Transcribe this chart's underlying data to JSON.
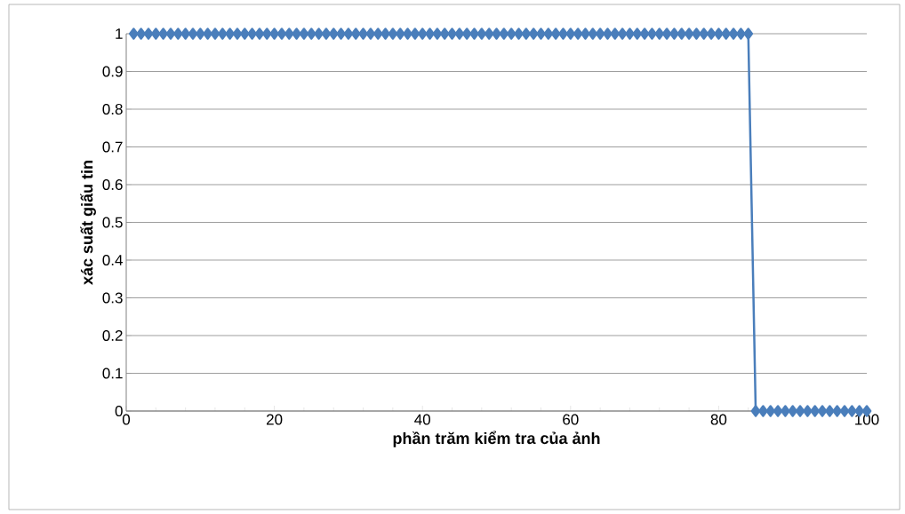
{
  "chart_data": {
    "type": "line",
    "xlabel": "phần trăm kiểm tra của ảnh",
    "ylabel": "xác suất giấu tin",
    "x": [
      1,
      2,
      3,
      4,
      5,
      6,
      7,
      8,
      9,
      10,
      11,
      12,
      13,
      14,
      15,
      16,
      17,
      18,
      19,
      20,
      21,
      22,
      23,
      24,
      25,
      26,
      27,
      28,
      29,
      30,
      31,
      32,
      33,
      34,
      35,
      36,
      37,
      38,
      39,
      40,
      41,
      42,
      43,
      44,
      45,
      46,
      47,
      48,
      49,
      50,
      51,
      52,
      53,
      54,
      55,
      56,
      57,
      58,
      59,
      60,
      61,
      62,
      63,
      64,
      65,
      66,
      67,
      68,
      69,
      70,
      71,
      72,
      73,
      74,
      75,
      76,
      77,
      78,
      79,
      80,
      81,
      82,
      83,
      84,
      85,
      86,
      87,
      88,
      89,
      90,
      91,
      92,
      93,
      94,
      95,
      96,
      97,
      98,
      99,
      100
    ],
    "values": [
      1,
      1,
      1,
      1,
      1,
      1,
      1,
      1,
      1,
      1,
      1,
      1,
      1,
      1,
      1,
      1,
      1,
      1,
      1,
      1,
      1,
      1,
      1,
      1,
      1,
      1,
      1,
      1,
      1,
      1,
      1,
      1,
      1,
      1,
      1,
      1,
      1,
      1,
      1,
      1,
      1,
      1,
      1,
      1,
      1,
      1,
      1,
      1,
      1,
      1,
      1,
      1,
      1,
      1,
      1,
      1,
      1,
      1,
      1,
      1,
      1,
      1,
      1,
      1,
      1,
      1,
      1,
      1,
      1,
      1,
      1,
      1,
      1,
      1,
      1,
      1,
      1,
      1,
      1,
      1,
      1,
      1,
      1,
      1,
      0,
      0,
      0,
      0,
      0,
      0,
      0,
      0,
      0,
      0,
      0,
      0,
      0,
      0,
      0,
      0
    ],
    "color": "#4a7ebb",
    "marker": "diamond",
    "line_style": "solid",
    "grid": "y",
    "xlim": [
      0,
      100
    ],
    "xticks": [
      0,
      20,
      40,
      60,
      80,
      100
    ],
    "ylim": [
      0,
      1
    ],
    "yticks": [
      0,
      0.1,
      0.2,
      0.3,
      0.4,
      0.5,
      0.6,
      0.7,
      0.8,
      0.9,
      1
    ]
  }
}
